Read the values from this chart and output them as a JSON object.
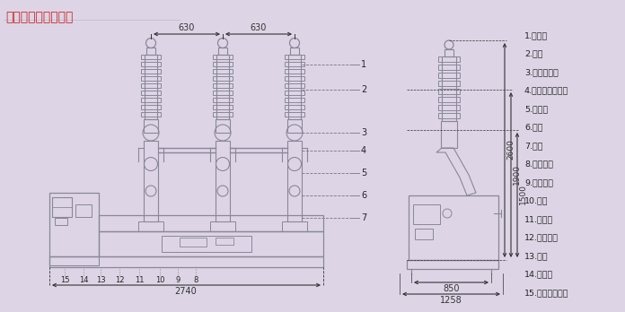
{
  "title": "三、外形及安装尺寸",
  "title_color": "#cc2222",
  "bg_color": "#ddd5e5",
  "legend_items": [
    "1.出线帽",
    "2.瓷套",
    "3.电流互感器",
    "4.互感器连接护管",
    "5.极附器",
    "6.外壳",
    "7.底架",
    "8.气体管道",
    "9.分合指示",
    "10.铭牌",
    "11.传动箱",
    "12.分闸弹簧",
    "13.螺套",
    "14.起吊环",
    "15.弹簧操动机构"
  ],
  "dim_630_1": "630",
  "dim_630_2": "630",
  "dim_2600": "2600",
  "dim_1900": "1900",
  "dim_1500": "1500",
  "dim_2740": "2740",
  "dim_850": "850",
  "dim_1258": "1258",
  "line_color": "#888899",
  "draw_color": "#888899",
  "text_color": "#222222",
  "dim_color": "#333333",
  "callout_nums": [
    "1",
    "2",
    "3",
    "4",
    "5",
    "6",
    "7"
  ]
}
